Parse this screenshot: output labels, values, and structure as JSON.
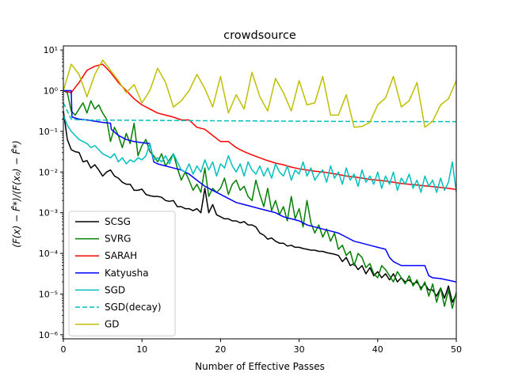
{
  "chart_data": {
    "type": "line",
    "title": "crowdsource",
    "xlabel": "Number of Effective Passes",
    "ylabel": "(F(x) − F̂*)/(F(x₀) − F̂*)",
    "xlim": [
      0,
      50
    ],
    "ylim_log10": [
      -6.1,
      1.1
    ],
    "yscale": "log",
    "xticks": [
      0,
      10,
      20,
      30,
      40,
      50
    ],
    "xtick_labels": [
      "0",
      "10",
      "20",
      "30",
      "40",
      "50"
    ],
    "yticks_log10": [
      1,
      0,
      -1,
      -2,
      -3,
      -4,
      -5,
      -6
    ],
    "ytick_labels": [
      "10¹",
      "10⁰",
      "10⁻¹",
      "10⁻²",
      "10⁻³",
      "10⁻⁴",
      "10⁻⁵",
      "10⁻⁶"
    ],
    "legend_position": "lower-left",
    "series": [
      {
        "name": "SCSG",
        "color": "#000000",
        "dash": "solid",
        "x": [
          0,
          0.5,
          1,
          1.5,
          2,
          2.5,
          3,
          3.5,
          4,
          4.5,
          5,
          5.5,
          6,
          6.5,
          7,
          7.5,
          8,
          8.5,
          9,
          9.5,
          10,
          10.5,
          11,
          11.5,
          12,
          12.5,
          13,
          13.5,
          14,
          14.5,
          15,
          15.5,
          16,
          16.5,
          17,
          17.5,
          18,
          18.5,
          19,
          19.5,
          20,
          20.5,
          21,
          21.5,
          22,
          22.5,
          23,
          23.5,
          24,
          24.5,
          25,
          25.5,
          26,
          26.5,
          27,
          27.5,
          28,
          28.5,
          29,
          29.5,
          30,
          30.5,
          31,
          31.5,
          32,
          32.5,
          33,
          33.5,
          34,
          34.5,
          35,
          35.5,
          36,
          36.5,
          37,
          37.5,
          38,
          38.5,
          39,
          39.5,
          40,
          40.5,
          41,
          41.5,
          42,
          42.5,
          43,
          43.5,
          44,
          44.5,
          45,
          45.5,
          46,
          46.5,
          47,
          47.5,
          48,
          48.5,
          49,
          49.5,
          50
        ],
        "y_log10": [
          -0.5,
          -1.2,
          -1.45,
          -1.5,
          -1.52,
          -1.75,
          -1.72,
          -1.9,
          -1.82,
          -1.95,
          -2.1,
          -2.0,
          -1.95,
          -2.1,
          -2.15,
          -2.25,
          -2.3,
          -2.3,
          -2.45,
          -2.45,
          -2.42,
          -2.55,
          -2.58,
          -2.6,
          -2.6,
          -2.62,
          -2.7,
          -2.72,
          -2.7,
          -2.85,
          -2.85,
          -2.9,
          -2.9,
          -2.95,
          -2.9,
          -3.0,
          -2.4,
          -3.0,
          -2.8,
          -3.05,
          -3.1,
          -3.15,
          -3.15,
          -3.2,
          -3.2,
          -3.25,
          -3.22,
          -3.3,
          -3.3,
          -3.35,
          -3.5,
          -3.55,
          -3.65,
          -3.62,
          -3.7,
          -3.75,
          -3.75,
          -3.82,
          -3.8,
          -3.85,
          -3.85,
          -3.88,
          -3.9,
          -3.92,
          -3.92,
          -3.95,
          -3.95,
          -3.98,
          -4.0,
          -4.02,
          -4.05,
          -4.2,
          -4.1,
          -4.3,
          -4.25,
          -4.4,
          -4.3,
          -4.5,
          -4.35,
          -4.55,
          -4.45,
          -4.6,
          -4.5,
          -4.65,
          -4.5,
          -4.7,
          -4.6,
          -4.7,
          -4.65,
          -4.75,
          -4.7,
          -4.85,
          -4.75,
          -4.9,
          -4.9,
          -5.05,
          -4.85,
          -5.1,
          -4.8,
          -5.2,
          -5.0
        ]
      },
      {
        "name": "SVRG",
        "color": "#008000",
        "dash": "solid",
        "x": [
          0,
          0.5,
          1,
          1.5,
          2,
          2.5,
          3,
          3.5,
          4,
          4.5,
          5,
          5.5,
          6,
          6.5,
          7,
          7.5,
          8,
          8.5,
          9,
          9.5,
          10,
          10.5,
          11,
          11.5,
          12,
          12.5,
          13,
          13.5,
          14,
          14.5,
          15,
          15.5,
          16,
          16.5,
          17,
          17.5,
          18,
          18.5,
          19,
          19.5,
          20,
          20.5,
          21,
          21.5,
          22,
          22.5,
          23,
          23.5,
          24,
          24.5,
          25,
          25.5,
          26,
          26.5,
          27,
          27.5,
          28,
          28.5,
          29,
          29.5,
          30,
          30.5,
          31,
          31.5,
          32,
          32.5,
          33,
          33.5,
          34,
          34.5,
          35,
          35.5,
          36,
          36.5,
          37,
          37.5,
          38,
          38.5,
          39,
          39.5,
          40,
          40.5,
          41,
          41.5,
          42,
          42.5,
          43,
          43.5,
          44,
          44.5,
          45,
          45.5,
          46,
          46.5,
          47,
          47.5,
          48,
          48.5,
          49,
          49.5,
          50
        ],
        "y_log10": [
          0.0,
          -0.05,
          -0.5,
          -0.6,
          -0.45,
          -0.3,
          -0.55,
          -0.25,
          -0.45,
          -0.35,
          -0.55,
          -0.7,
          -1.25,
          -0.9,
          -1.1,
          -1.4,
          -1.05,
          -1.3,
          -0.8,
          -1.6,
          -1.35,
          -1.2,
          -1.5,
          -1.6,
          -1.75,
          -1.55,
          -1.85,
          -1.7,
          -1.55,
          -1.9,
          -2.2,
          -2.0,
          -2.2,
          -2.45,
          -2.3,
          -2.5,
          -1.9,
          -2.6,
          -2.4,
          -2.5,
          -2.4,
          -2.15,
          -2.55,
          -2.3,
          -2.2,
          -2.45,
          -2.35,
          -2.6,
          -2.7,
          -2.2,
          -2.55,
          -2.85,
          -2.4,
          -2.95,
          -2.7,
          -3.05,
          -2.85,
          -3.2,
          -2.6,
          -3.15,
          -2.9,
          -3.35,
          -2.7,
          -3.25,
          -3.5,
          -3.3,
          -3.6,
          -3.4,
          -3.7,
          -3.5,
          -3.9,
          -3.8,
          -4.05,
          -3.95,
          -4.3,
          -4.0,
          -4.1,
          -4.35,
          -4.25,
          -4.5,
          -4.6,
          -4.3,
          -4.4,
          -4.55,
          -4.7,
          -4.45,
          -4.6,
          -4.75,
          -4.55,
          -4.8,
          -4.65,
          -4.9,
          -4.7,
          -5.05,
          -4.75,
          -5.2,
          -4.85,
          -5.3,
          -4.9,
          -5.35,
          -4.95
        ]
      },
      {
        "name": "SARAH",
        "color": "#ff0000",
        "dash": "solid",
        "x": [
          0,
          1,
          2,
          3,
          4,
          5,
          6,
          7,
          8,
          9,
          10,
          11,
          12,
          13,
          14,
          15,
          16,
          17,
          18,
          19,
          20,
          21,
          22,
          23,
          24,
          25,
          26,
          27,
          28,
          29,
          30,
          31,
          32,
          33,
          34,
          35,
          36,
          37,
          38,
          39,
          40,
          41,
          42,
          43,
          44,
          45,
          46,
          47,
          48,
          49,
          50
        ],
        "y_log10": [
          0.0,
          -0.05,
          0.2,
          0.5,
          0.6,
          0.65,
          0.45,
          0.2,
          0.0,
          -0.2,
          -0.35,
          -0.45,
          -0.55,
          -0.6,
          -0.65,
          -0.72,
          -0.72,
          -0.9,
          -0.95,
          -1.1,
          -1.25,
          -1.25,
          -1.4,
          -1.5,
          -1.58,
          -1.65,
          -1.72,
          -1.78,
          -1.82,
          -1.88,
          -1.92,
          -1.95,
          -1.98,
          -2.0,
          -2.03,
          -2.06,
          -2.1,
          -2.12,
          -2.15,
          -2.18,
          -2.2,
          -2.22,
          -2.25,
          -2.28,
          -2.3,
          -2.32,
          -2.34,
          -2.36,
          -2.38,
          -2.4,
          -2.43
        ]
      },
      {
        "name": "Katyusha",
        "color": "#0000ff",
        "dash": "solid",
        "x": [
          0,
          1,
          1.1,
          2,
          3,
          4,
          5,
          6,
          6.1,
          7,
          8,
          9,
          10,
          11,
          11.5,
          12,
          13,
          14,
          15,
          16,
          17,
          18,
          19,
          20,
          21,
          22,
          23,
          24,
          25,
          26,
          27,
          28,
          29,
          30,
          31,
          32,
          33,
          34,
          35,
          36,
          37,
          38,
          39,
          40,
          41,
          41.5,
          42,
          43,
          44,
          45,
          46,
          46.5,
          47,
          48,
          49,
          50
        ],
        "y_log10": [
          0.0,
          0.0,
          -0.65,
          -0.7,
          -0.72,
          -0.75,
          -0.78,
          -0.8,
          -0.95,
          -1.1,
          -1.2,
          -1.25,
          -1.28,
          -1.3,
          -1.75,
          -1.8,
          -1.85,
          -1.9,
          -1.95,
          -2.05,
          -2.2,
          -2.35,
          -2.45,
          -2.55,
          -2.65,
          -2.75,
          -2.8,
          -2.85,
          -2.9,
          -2.95,
          -3.0,
          -3.1,
          -3.15,
          -3.2,
          -3.3,
          -3.35,
          -3.4,
          -3.45,
          -3.5,
          -3.6,
          -3.7,
          -3.75,
          -3.8,
          -3.85,
          -3.9,
          -4.1,
          -4.2,
          -4.3,
          -4.3,
          -4.3,
          -4.3,
          -4.55,
          -4.6,
          -4.62,
          -4.66,
          -4.7
        ]
      },
      {
        "name": "SGD",
        "color": "#00bfbf",
        "dash": "solid",
        "x": [
          0,
          0.5,
          1,
          1.5,
          2,
          2.5,
          3,
          3.5,
          4,
          4.5,
          5,
          5.5,
          6,
          6.5,
          7,
          7.5,
          8,
          8.5,
          9,
          9.5,
          10,
          10.5,
          11,
          11.5,
          12,
          12.5,
          13,
          13.5,
          14,
          14.5,
          15,
          15.5,
          16,
          16.5,
          17,
          17.5,
          18,
          18.5,
          19,
          19.5,
          20,
          20.5,
          21,
          21.5,
          22,
          22.5,
          23,
          23.5,
          24,
          24.5,
          25,
          25.5,
          26,
          26.5,
          27,
          27.5,
          28,
          28.5,
          29,
          29.5,
          30,
          30.5,
          31,
          31.5,
          32,
          32.5,
          33,
          33.5,
          34,
          34.5,
          35,
          35.5,
          36,
          36.5,
          37,
          37.5,
          38,
          38.5,
          39,
          39.5,
          40,
          40.5,
          41,
          41.5,
          42,
          42.5,
          43,
          43.5,
          44,
          44.5,
          45,
          45.5,
          46,
          46.5,
          47,
          47.5,
          48,
          48.5,
          49,
          49.5,
          50
        ],
        "y_log10": [
          -0.6,
          -0.85,
          -1.0,
          -1.1,
          -1.2,
          -1.25,
          -1.3,
          -1.4,
          -1.35,
          -1.45,
          -1.55,
          -1.6,
          -1.65,
          -1.55,
          -1.75,
          -1.65,
          -1.8,
          -1.7,
          -1.75,
          -1.65,
          -1.7,
          -1.6,
          -1.3,
          -1.7,
          -1.65,
          -1.75,
          -1.6,
          -1.8,
          -1.55,
          -1.75,
          -1.95,
          -2.0,
          -1.8,
          -2.05,
          -1.85,
          -2.0,
          -1.7,
          -1.95,
          -1.75,
          -2.1,
          -1.8,
          -1.9,
          -1.6,
          -1.85,
          -2.0,
          -1.8,
          -2.1,
          -1.75,
          -1.95,
          -2.05,
          -1.85,
          -2.1,
          -1.9,
          -2.15,
          -1.8,
          -2.0,
          -2.1,
          -1.85,
          -2.2,
          -1.95,
          -2.05,
          -1.75,
          -2.1,
          -1.9,
          -2.2,
          -2.05,
          -1.95,
          -2.25,
          -1.85,
          -2.15,
          -2.0,
          -2.3,
          -1.9,
          -2.2,
          -2.05,
          -2.35,
          -1.95,
          -2.25,
          -2.1,
          -2.3,
          -2.0,
          -2.4,
          -2.1,
          -2.3,
          -2.0,
          -2.45,
          -2.15,
          -2.3,
          -2.05,
          -2.4,
          -2.2,
          -2.5,
          -2.1,
          -2.35,
          -2.2,
          -2.5,
          -2.15,
          -2.45,
          -2.25,
          -1.75,
          -2.5
        ]
      },
      {
        "name": "SGD(decay)",
        "color": "#00bfbf",
        "dash": "dashed",
        "x": [
          0,
          1,
          2,
          10,
          20,
          30,
          40,
          50
        ],
        "y_log10": [
          -0.3,
          -0.7,
          -0.72,
          -0.73,
          -0.74,
          -0.75,
          -0.76,
          -0.76
        ]
      },
      {
        "name": "GD",
        "color": "#bfbf00",
        "dash": "solid",
        "x": [
          0,
          1,
          2,
          3,
          4,
          5,
          6,
          7,
          8,
          9,
          10,
          11,
          12,
          13,
          14,
          15,
          16,
          17,
          18,
          19,
          20,
          21,
          22,
          23,
          24,
          25,
          26,
          27,
          28,
          29,
          30,
          31,
          32,
          33,
          34,
          35,
          36,
          37,
          38,
          39,
          40,
          41,
          42,
          43,
          44,
          45,
          46,
          47,
          48,
          49,
          50
        ],
        "y_log10": [
          0.0,
          0.65,
          0.4,
          -0.15,
          0.4,
          0.75,
          0.5,
          0.25,
          -0.05,
          0.15,
          -0.3,
          0.0,
          0.55,
          0.2,
          -0.4,
          -0.25,
          0.0,
          0.4,
          0.05,
          -0.4,
          0.35,
          -0.55,
          -0.1,
          -0.45,
          0.45,
          -0.15,
          -0.5,
          0.3,
          -0.05,
          -0.5,
          0.25,
          -0.35,
          -0.3,
          0.35,
          -0.6,
          -0.6,
          -0.1,
          -0.9,
          -0.88,
          -0.78,
          -0.35,
          -0.18,
          0.35,
          -0.4,
          -0.25,
          0.2,
          -0.9,
          -0.75,
          -0.35,
          -0.2,
          0.25
        ]
      }
    ]
  }
}
